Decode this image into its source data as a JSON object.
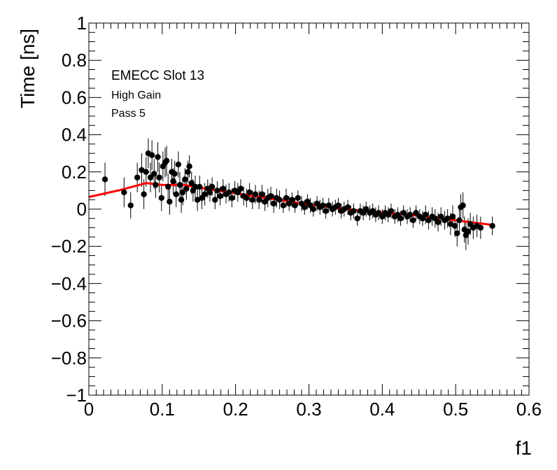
{
  "chart_data": {
    "type": "scatter",
    "title": "",
    "xlabel": "f1",
    "ylabel": "Time [ns]",
    "xlim": [
      0,
      0.6
    ],
    "ylim": [
      -1,
      1
    ],
    "xticks": [
      0,
      0.1,
      0.2,
      0.3,
      0.4,
      0.5,
      0.6
    ],
    "xtick_labels": [
      "0",
      "0.1",
      "0.2",
      "0.3",
      "0.4",
      "0.5",
      "0.6"
    ],
    "yticks": [
      -1,
      -0.8,
      -0.6,
      -0.4,
      -0.2,
      0,
      0.2,
      0.4,
      0.6,
      0.8,
      1
    ],
    "ytick_labels": [
      "−1",
      "−0.8",
      "−0.6",
      "−0.4",
      "−0.2",
      "0",
      "0.2",
      "0.4",
      "0.6",
      "0.8",
      "1"
    ],
    "grid": false,
    "annotations": [
      "EMECC Slot 13",
      "High Gain",
      "Pass 5"
    ],
    "colors": {
      "points": "#000000",
      "fit": "#ff0000",
      "frame": "#000000"
    },
    "series": [
      {
        "kind": "points_with_errors",
        "points": [
          {
            "x": 0.022,
            "y": 0.16,
            "err": 0.09
          },
          {
            "x": 0.048,
            "y": 0.09,
            "err": 0.08
          },
          {
            "x": 0.057,
            "y": 0.02,
            "err": 0.07
          },
          {
            "x": 0.066,
            "y": 0.17,
            "err": 0.08
          },
          {
            "x": 0.072,
            "y": 0.21,
            "err": 0.09
          },
          {
            "x": 0.075,
            "y": 0.08,
            "err": 0.08
          },
          {
            "x": 0.078,
            "y": 0.2,
            "err": 0.08
          },
          {
            "x": 0.081,
            "y": 0.3,
            "err": 0.08
          },
          {
            "x": 0.084,
            "y": 0.17,
            "err": 0.08
          },
          {
            "x": 0.086,
            "y": 0.29,
            "err": 0.08
          },
          {
            "x": 0.089,
            "y": 0.19,
            "err": 0.08
          },
          {
            "x": 0.091,
            "y": 0.13,
            "err": 0.07
          },
          {
            "x": 0.094,
            "y": 0.28,
            "err": 0.08
          },
          {
            "x": 0.096,
            "y": 0.17,
            "err": 0.08
          },
          {
            "x": 0.099,
            "y": 0.06,
            "err": 0.07
          },
          {
            "x": 0.101,
            "y": 0.23,
            "err": 0.08
          },
          {
            "x": 0.104,
            "y": 0.25,
            "err": 0.08
          },
          {
            "x": 0.106,
            "y": 0.26,
            "err": 0.08
          },
          {
            "x": 0.108,
            "y": 0.12,
            "err": 0.07
          },
          {
            "x": 0.11,
            "y": 0.04,
            "err": 0.07
          },
          {
            "x": 0.113,
            "y": 0.2,
            "err": 0.07
          },
          {
            "x": 0.115,
            "y": 0.15,
            "err": 0.07
          },
          {
            "x": 0.117,
            "y": 0.19,
            "err": 0.07
          },
          {
            "x": 0.119,
            "y": 0.08,
            "err": 0.07
          },
          {
            "x": 0.122,
            "y": 0.24,
            "err": 0.07
          },
          {
            "x": 0.124,
            "y": 0.13,
            "err": 0.07
          },
          {
            "x": 0.126,
            "y": 0.05,
            "err": 0.07
          },
          {
            "x": 0.128,
            "y": 0.09,
            "err": 0.07
          },
          {
            "x": 0.131,
            "y": 0.16,
            "err": 0.06
          },
          {
            "x": 0.133,
            "y": 0.11,
            "err": 0.06
          },
          {
            "x": 0.135,
            "y": 0.2,
            "err": 0.06
          },
          {
            "x": 0.137,
            "y": 0.23,
            "err": 0.06
          },
          {
            "x": 0.14,
            "y": 0.14,
            "err": 0.06
          },
          {
            "x": 0.142,
            "y": 0.1,
            "err": 0.06
          },
          {
            "x": 0.145,
            "y": 0.12,
            "err": 0.06
          },
          {
            "x": 0.148,
            "y": 0.05,
            "err": 0.06
          },
          {
            "x": 0.151,
            "y": 0.12,
            "err": 0.06
          },
          {
            "x": 0.154,
            "y": 0.06,
            "err": 0.06
          },
          {
            "x": 0.158,
            "y": 0.08,
            "err": 0.06
          },
          {
            "x": 0.162,
            "y": 0.11,
            "err": 0.05
          },
          {
            "x": 0.165,
            "y": 0.09,
            "err": 0.05
          },
          {
            "x": 0.168,
            "y": 0.12,
            "err": 0.05
          },
          {
            "x": 0.172,
            "y": 0.05,
            "err": 0.05
          },
          {
            "x": 0.175,
            "y": 0.1,
            "err": 0.05
          },
          {
            "x": 0.179,
            "y": 0.07,
            "err": 0.05
          },
          {
            "x": 0.183,
            "y": 0.11,
            "err": 0.05
          },
          {
            "x": 0.187,
            "y": 0.08,
            "err": 0.05
          },
          {
            "x": 0.191,
            "y": 0.09,
            "err": 0.05
          },
          {
            "x": 0.195,
            "y": 0.06,
            "err": 0.05
          },
          {
            "x": 0.199,
            "y": 0.1,
            "err": 0.05
          },
          {
            "x": 0.203,
            "y": 0.09,
            "err": 0.05
          },
          {
            "x": 0.207,
            "y": 0.11,
            "err": 0.05
          },
          {
            "x": 0.211,
            "y": 0.07,
            "err": 0.05
          },
          {
            "x": 0.215,
            "y": 0.06,
            "err": 0.05
          },
          {
            "x": 0.219,
            "y": 0.09,
            "err": 0.05
          },
          {
            "x": 0.223,
            "y": 0.05,
            "err": 0.05
          },
          {
            "x": 0.227,
            "y": 0.08,
            "err": 0.05
          },
          {
            "x": 0.232,
            "y": 0.05,
            "err": 0.05
          },
          {
            "x": 0.236,
            "y": 0.08,
            "err": 0.05
          },
          {
            "x": 0.24,
            "y": 0.04,
            "err": 0.05
          },
          {
            "x": 0.244,
            "y": 0.06,
            "err": 0.05
          },
          {
            "x": 0.248,
            "y": 0.07,
            "err": 0.05
          },
          {
            "x": 0.252,
            "y": 0.03,
            "err": 0.05
          },
          {
            "x": 0.256,
            "y": 0.06,
            "err": 0.05
          },
          {
            "x": 0.26,
            "y": 0.05,
            "err": 0.05
          },
          {
            "x": 0.265,
            "y": 0.02,
            "err": 0.04
          },
          {
            "x": 0.269,
            "y": 0.06,
            "err": 0.05
          },
          {
            "x": 0.273,
            "y": 0.03,
            "err": 0.04
          },
          {
            "x": 0.277,
            "y": 0.05,
            "err": 0.04
          },
          {
            "x": 0.281,
            "y": 0.02,
            "err": 0.04
          },
          {
            "x": 0.285,
            "y": 0.06,
            "err": 0.04
          },
          {
            "x": 0.29,
            "y": 0.03,
            "err": 0.04
          },
          {
            "x": 0.294,
            "y": 0.01,
            "err": 0.04
          },
          {
            "x": 0.298,
            "y": 0.04,
            "err": 0.04
          },
          {
            "x": 0.302,
            "y": 0.02,
            "err": 0.04
          },
          {
            "x": 0.306,
            "y": 0.0,
            "err": 0.04
          },
          {
            "x": 0.311,
            "y": 0.03,
            "err": 0.04
          },
          {
            "x": 0.315,
            "y": 0.01,
            "err": 0.04
          },
          {
            "x": 0.319,
            "y": 0.02,
            "err": 0.04
          },
          {
            "x": 0.323,
            "y": -0.01,
            "err": 0.04
          },
          {
            "x": 0.327,
            "y": 0.02,
            "err": 0.04
          },
          {
            "x": 0.332,
            "y": 0.0,
            "err": 0.04
          },
          {
            "x": 0.336,
            "y": 0.01,
            "err": 0.04
          },
          {
            "x": 0.34,
            "y": 0.02,
            "err": 0.04
          },
          {
            "x": 0.344,
            "y": -0.01,
            "err": 0.04
          },
          {
            "x": 0.348,
            "y": 0.0,
            "err": 0.04
          },
          {
            "x": 0.353,
            "y": 0.01,
            "err": 0.04
          },
          {
            "x": 0.357,
            "y": -0.02,
            "err": 0.04
          },
          {
            "x": 0.361,
            "y": -0.01,
            "err": 0.04
          },
          {
            "x": 0.366,
            "y": -0.05,
            "err": 0.04
          },
          {
            "x": 0.37,
            "y": -0.01,
            "err": 0.04
          },
          {
            "x": 0.374,
            "y": -0.02,
            "err": 0.04
          },
          {
            "x": 0.378,
            "y": 0.0,
            "err": 0.04
          },
          {
            "x": 0.383,
            "y": -0.02,
            "err": 0.04
          },
          {
            "x": 0.387,
            "y": -0.01,
            "err": 0.04
          },
          {
            "x": 0.391,
            "y": -0.03,
            "err": 0.04
          },
          {
            "x": 0.395,
            "y": -0.02,
            "err": 0.04
          },
          {
            "x": 0.4,
            "y": -0.04,
            "err": 0.04
          },
          {
            "x": 0.404,
            "y": -0.02,
            "err": 0.04
          },
          {
            "x": 0.408,
            "y": -0.03,
            "err": 0.04
          },
          {
            "x": 0.412,
            "y": -0.01,
            "err": 0.04
          },
          {
            "x": 0.417,
            "y": -0.04,
            "err": 0.04
          },
          {
            "x": 0.421,
            "y": -0.03,
            "err": 0.04
          },
          {
            "x": 0.425,
            "y": -0.05,
            "err": 0.04
          },
          {
            "x": 0.429,
            "y": -0.02,
            "err": 0.04
          },
          {
            "x": 0.434,
            "y": -0.04,
            "err": 0.04
          },
          {
            "x": 0.438,
            "y": -0.03,
            "err": 0.04
          },
          {
            "x": 0.442,
            "y": -0.06,
            "err": 0.04
          },
          {
            "x": 0.446,
            "y": -0.02,
            "err": 0.04
          },
          {
            "x": 0.451,
            "y": -0.04,
            "err": 0.04
          },
          {
            "x": 0.455,
            "y": -0.05,
            "err": 0.04
          },
          {
            "x": 0.459,
            "y": -0.03,
            "err": 0.05
          },
          {
            "x": 0.463,
            "y": -0.06,
            "err": 0.05
          },
          {
            "x": 0.468,
            "y": -0.04,
            "err": 0.05
          },
          {
            "x": 0.472,
            "y": -0.05,
            "err": 0.05
          },
          {
            "x": 0.476,
            "y": -0.07,
            "err": 0.05
          },
          {
            "x": 0.48,
            "y": -0.04,
            "err": 0.05
          },
          {
            "x": 0.485,
            "y": -0.06,
            "err": 0.05
          },
          {
            "x": 0.489,
            "y": -0.05,
            "err": 0.05
          },
          {
            "x": 0.493,
            "y": -0.08,
            "err": 0.06
          },
          {
            "x": 0.496,
            "y": -0.04,
            "err": 0.06
          },
          {
            "x": 0.499,
            "y": -0.09,
            "err": 0.06
          },
          {
            "x": 0.502,
            "y": -0.13,
            "err": 0.07
          },
          {
            "x": 0.505,
            "y": -0.06,
            "err": 0.06
          },
          {
            "x": 0.507,
            "y": 0.01,
            "err": 0.07
          },
          {
            "x": 0.51,
            "y": 0.02,
            "err": 0.07
          },
          {
            "x": 0.512,
            "y": -0.11,
            "err": 0.07
          },
          {
            "x": 0.514,
            "y": -0.14,
            "err": 0.08
          },
          {
            "x": 0.517,
            "y": -0.12,
            "err": 0.07
          },
          {
            "x": 0.52,
            "y": -0.08,
            "err": 0.06
          },
          {
            "x": 0.524,
            "y": -0.1,
            "err": 0.06
          },
          {
            "x": 0.529,
            "y": -0.09,
            "err": 0.06
          },
          {
            "x": 0.534,
            "y": -0.1,
            "err": 0.06
          },
          {
            "x": 0.55,
            "y": -0.09,
            "err": 0.05
          }
        ]
      },
      {
        "kind": "fit_line",
        "x": [
          0.0,
          0.04,
          0.078,
          0.1,
          0.13,
          0.15,
          0.2,
          0.25,
          0.3,
          0.35,
          0.4,
          0.45,
          0.5,
          0.55
        ],
        "y": [
          0.065,
          0.1,
          0.14,
          0.13,
          0.13,
          0.115,
          0.085,
          0.055,
          0.025,
          0.0,
          -0.02,
          -0.035,
          -0.06,
          -0.085
        ]
      }
    ]
  }
}
